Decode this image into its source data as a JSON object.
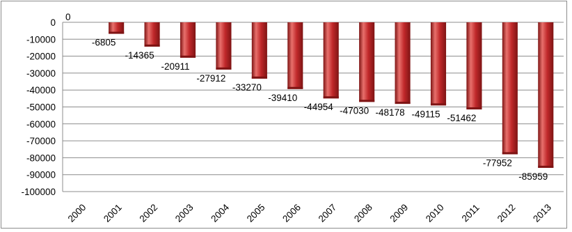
{
  "chart_data": {
    "type": "bar",
    "categories": [
      "2000",
      "2001",
      "2002",
      "2003",
      "2004",
      "2005",
      "2006",
      "2007",
      "2008",
      "2009",
      "2010",
      "2011",
      "2012",
      "2013"
    ],
    "values": [
      0,
      -6805,
      -14365,
      -20911,
      -27912,
      -33270,
      -39410,
      -44954,
      -47030,
      -48178,
      -49115,
      -51462,
      -77952,
      -85959
    ],
    "data_labels": [
      "0",
      "-6805",
      "-14365",
      "-20911",
      "-27912",
      "-33270",
      "-39410",
      "-44954",
      "-47030",
      "-48178",
      "-49115",
      "-51462",
      "-77952",
      "-85959"
    ],
    "y_ticks": [
      0,
      -10000,
      -20000,
      -30000,
      -40000,
      -50000,
      -60000,
      -70000,
      -80000,
      -90000,
      -100000
    ],
    "y_tick_labels": [
      "0",
      "-10000",
      "-20000",
      "-30000",
      "-40000",
      "-50000",
      "-60000",
      "-70000",
      "-80000",
      "-90000",
      "-100000"
    ],
    "ylim": [
      -100000,
      0
    ],
    "gridlines": true,
    "legend": "none",
    "bar_color": "#c0282a",
    "bar_highlight_color": "#e8706c",
    "bar_shadow_color": "#7e1414",
    "title": "",
    "xlabel": "",
    "ylabel": ""
  }
}
